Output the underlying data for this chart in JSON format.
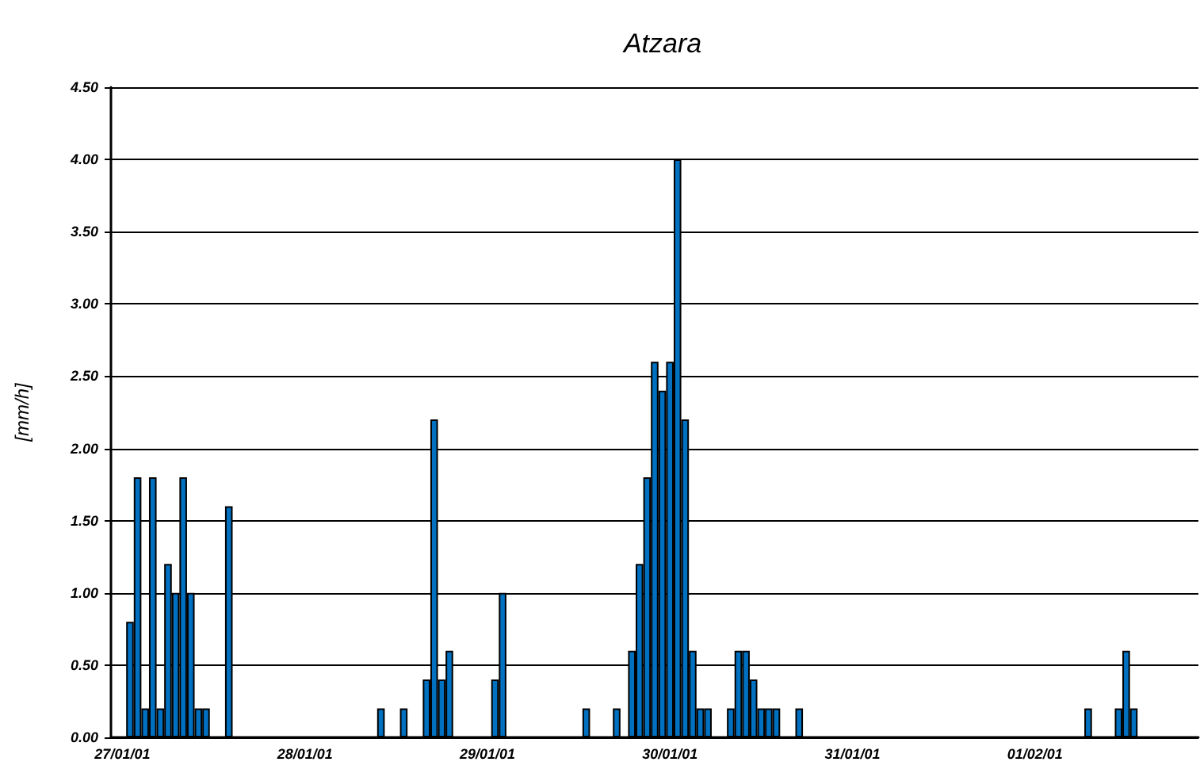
{
  "chart_data": {
    "type": "bar",
    "title": "Atzara",
    "ylabel": "[mm/h]",
    "categories": [
      null,
      "27/01/01",
      null,
      null,
      null,
      null,
      null,
      null,
      null,
      null,
      null,
      null,
      null,
      null,
      null,
      null,
      null,
      null,
      null,
      null,
      null,
      null,
      null,
      null,
      null,
      "28/01/01",
      null,
      null,
      null,
      null,
      null,
      null,
      null,
      null,
      null,
      null,
      null,
      null,
      null,
      null,
      null,
      null,
      null,
      null,
      null,
      null,
      null,
      null,
      null,
      "29/01/01",
      null,
      null,
      null,
      null,
      null,
      null,
      null,
      null,
      null,
      null,
      null,
      null,
      null,
      null,
      null,
      null,
      null,
      null,
      null,
      null,
      null,
      null,
      null,
      "30/01/01",
      null,
      null,
      null,
      null,
      null,
      null,
      null,
      null,
      null,
      null,
      null,
      null,
      null,
      null,
      null,
      null,
      null,
      null,
      null,
      null,
      null,
      null,
      null,
      "31/01/01",
      null,
      null,
      null,
      null,
      null,
      null,
      null,
      null,
      null,
      null,
      null,
      null,
      null,
      null,
      null,
      null,
      null,
      null,
      null,
      null,
      null,
      null,
      null,
      "01/02/01",
      null,
      null,
      null,
      null,
      null,
      null,
      null,
      null,
      null,
      null,
      null,
      null,
      null,
      null,
      null,
      null,
      null,
      null,
      null,
      null,
      null
    ],
    "values": [
      null,
      null,
      0.8,
      1.8,
      0.2,
      1.8,
      0.2,
      1.2,
      1.0,
      1.8,
      1.0,
      0.2,
      0.2,
      null,
      null,
      1.6,
      null,
      null,
      null,
      null,
      null,
      null,
      null,
      null,
      null,
      null,
      null,
      null,
      null,
      null,
      null,
      null,
      null,
      null,
      null,
      0.2,
      null,
      null,
      0.2,
      null,
      null,
      0.4,
      2.2,
      0.4,
      0.6,
      null,
      null,
      null,
      null,
      null,
      0.4,
      1.0,
      null,
      null,
      null,
      null,
      null,
      null,
      null,
      null,
      null,
      null,
      0.2,
      null,
      null,
      null,
      0.2,
      null,
      0.6,
      1.2,
      1.8,
      2.6,
      2.4,
      2.6,
      4.0,
      2.2,
      0.6,
      0.2,
      0.2,
      null,
      null,
      0.2,
      0.6,
      0.6,
      0.4,
      0.2,
      0.2,
      0.2,
      null,
      null,
      0.2,
      null,
      null,
      null,
      null,
      null,
      null,
      null,
      null,
      null,
      null,
      null,
      null,
      null,
      null,
      null,
      null,
      null,
      null,
      null,
      null,
      null,
      null,
      null,
      null,
      null,
      null,
      null,
      null,
      null,
      null,
      null,
      null,
      null,
      null,
      null,
      null,
      null,
      0.2,
      null,
      null,
      null,
      0.2,
      0.6,
      0.2,
      null,
      null,
      null,
      null,
      null,
      null,
      null,
      null
    ],
    "color": "#0070c0",
    "ylim": [
      0,
      4.5
    ],
    "yticks": [
      {
        "value": 0,
        "label": "0.00"
      },
      {
        "value": 0.5,
        "label": "0.50"
      },
      {
        "value": 1,
        "label": "1.00"
      },
      {
        "value": 1.5,
        "label": "1.50"
      },
      {
        "value": 2,
        "label": "2.00"
      },
      {
        "value": 2.5,
        "label": "2.50"
      },
      {
        "value": 3,
        "label": "3.00"
      },
      {
        "value": 3.5,
        "label": "3.50"
      },
      {
        "value": 4,
        "label": "4.00"
      },
      {
        "value": 4.5,
        "label": "4.50"
      }
    ],
    "grid": "y"
  }
}
